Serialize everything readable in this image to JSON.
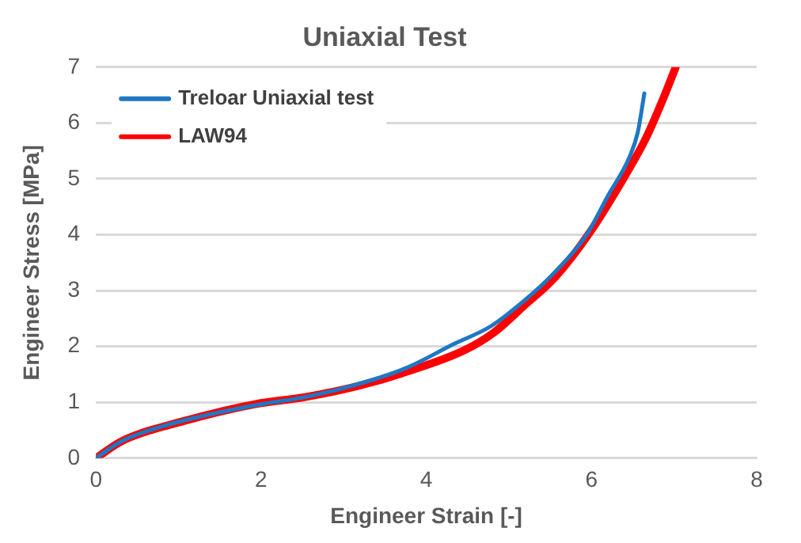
{
  "chart_data": {
    "type": "line",
    "title": "Uniaxial Test",
    "xlabel": "Engineer Strain [-]",
    "ylabel": "Engineer Stress [MPa]",
    "xlim": [
      0,
      8
    ],
    "xticks": [
      0,
      2,
      4,
      6,
      8
    ],
    "ylim": [
      0,
      7
    ],
    "yticks": [
      0,
      1,
      2,
      3,
      4,
      5,
      6,
      7
    ],
    "grid": "y",
    "legend": "top left",
    "marker": "none",
    "line_style": "solid",
    "series": [
      {
        "name": "Treloar Uniaxial test",
        "color": "#1f77c4",
        "x": [
          0,
          0.32,
          0.9,
          1.94,
          2.52,
          3.04,
          3.75,
          4.33,
          4.78,
          5.17,
          5.53,
          5.95,
          6.2,
          6.46,
          6.56,
          6.64
        ],
        "values": [
          0,
          0.31,
          0.61,
          0.95,
          1.09,
          1.27,
          1.61,
          2.04,
          2.36,
          2.8,
          3.29,
          4.02,
          4.7,
          5.39,
          5.83,
          6.53
        ]
      },
      {
        "name": "LAW94",
        "color": "#ff0000",
        "x": [
          0,
          0.32,
          1.03,
          1.94,
          2.52,
          3.17,
          3.75,
          4.46,
          4.82,
          5.17,
          5.56,
          5.98,
          6.46,
          6.66,
          6.85,
          7.02
        ],
        "values": [
          0,
          0.31,
          0.65,
          0.97,
          1.09,
          1.29,
          1.54,
          1.93,
          2.25,
          2.71,
          3.24,
          4.04,
          5.19,
          5.73,
          6.37,
          7.0
        ]
      }
    ]
  }
}
